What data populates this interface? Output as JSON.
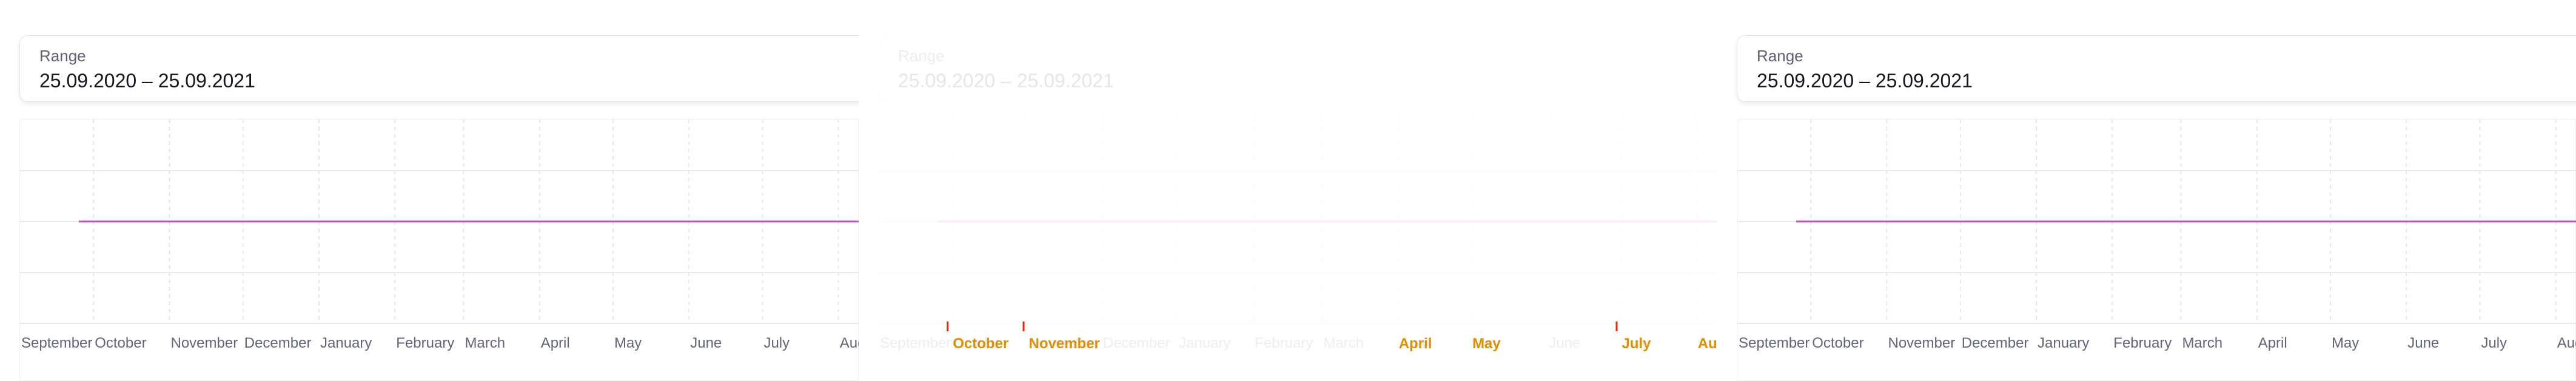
{
  "range_card": {
    "label": "Range",
    "value": "25.09.2020 – 25.09.2021"
  },
  "chart_data": {
    "type": "line",
    "title": "",
    "xlabel": "",
    "ylabel": "",
    "x_ticks": [
      "September",
      "October",
      "November",
      "December",
      "January",
      "February",
      "March",
      "April",
      "May",
      "June",
      "July",
      "August"
    ],
    "x_range": [
      "2020-09-25",
      "2021-09-25"
    ],
    "grid": true,
    "series": [
      {
        "x": [
          "2020-09-25",
          "2021-09-25"
        ],
        "y": [
          0,
          0
        ],
        "color": "#c252c4"
      }
    ]
  },
  "highlight": {
    "labels": [
      "October",
      "November",
      "April",
      "May",
      "July",
      "Au"
    ],
    "color": "#e08f00",
    "marker_color": "#ff2200"
  },
  "colors": {
    "grid": "#e6e7ec",
    "line": "#c252c4",
    "text": "#62647a"
  }
}
